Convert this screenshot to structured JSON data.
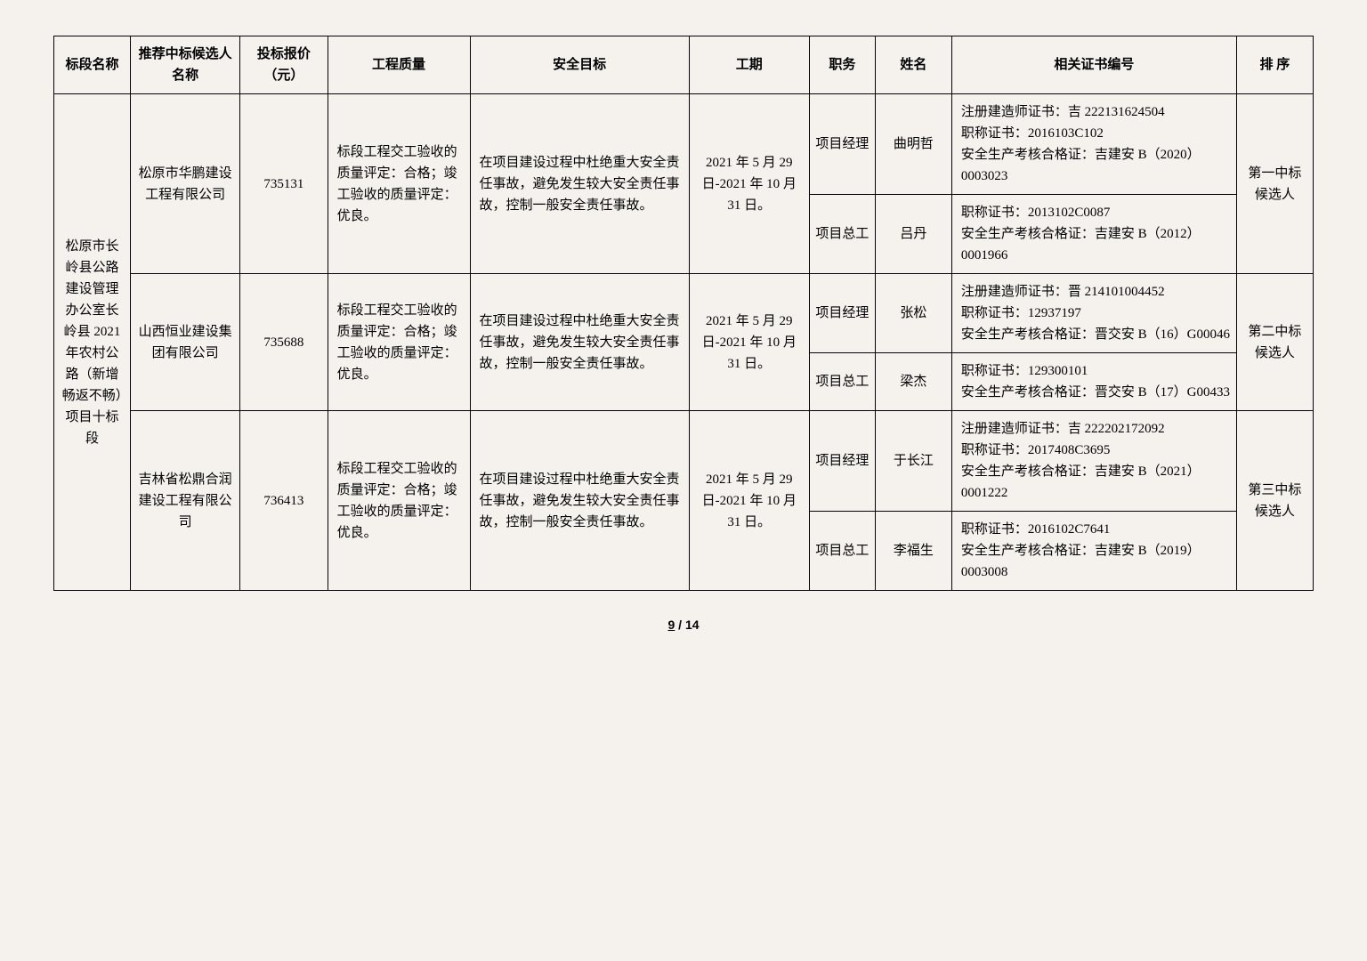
{
  "headers": {
    "section": "标段名称",
    "candidate": "推荐中标候选人名称",
    "price": "投标报价（元）",
    "quality": "工程质量",
    "safety": "安全目标",
    "period": "工期",
    "role": "职务",
    "name": "姓名",
    "cert": "相关证书编号",
    "rank": "排 序"
  },
  "section_name": "松原市长岭县公路建设管理办公室长岭县 2021 年农村公路（新增畅返不畅）项目十标段",
  "quality_text": "标段工程交工验收的质量评定：合格；竣工验收的质量评定：优良。",
  "safety_text": "在项目建设过程中杜绝重大安全责任事故，避免发生较大安全责任事故，控制一般安全责任事故。",
  "period_text": "2021 年 5 月 29 日-2021 年 10 月 31 日。",
  "roles": {
    "pm": "项目经理",
    "eng": "项目总工"
  },
  "cands": [
    {
      "company": "松原市华鹏建设工程有限公司",
      "price": "735131",
      "rank": "第一中标候选人",
      "pm": {
        "name": "曲明哲",
        "cert": "注册建造师证书：吉 222131624504\n职称证书：2016103C102\n安全生产考核合格证：吉建安 B（2020）0003023"
      },
      "eng": {
        "name": "吕丹",
        "cert": "职称证书：2013102C0087\n安全生产考核合格证：吉建安 B（2012）0001966"
      }
    },
    {
      "company": "山西恒业建设集团有限公司",
      "price": "735688",
      "rank": "第二中标候选人",
      "pm": {
        "name": "张松",
        "cert": "注册建造师证书：晋 214101004452\n职称证书：12937197\n安全生产考核合格证：晋交安 B（16）G00046"
      },
      "eng": {
        "name": "梁杰",
        "cert": "职称证书：129300101\n安全生产考核合格证：晋交安 B（17）G00433"
      }
    },
    {
      "company": "吉林省松鼎合润建设工程有限公司",
      "price": "736413",
      "rank": "第三中标候选人",
      "pm": {
        "name": "于长江",
        "cert": "注册建造师证书：吉 222202172092\n职称证书：2017408C3695\n安全生产考核合格证：吉建安 B（2021）0001222"
      },
      "eng": {
        "name": "李福生",
        "cert": "职称证书：2016102C7641\n安全生产考核合格证：吉建安 B（2019）0003008"
      }
    }
  ],
  "page": {
    "current": "9",
    "sep": " / ",
    "total": "14"
  },
  "colwidths": [
    "70",
    "100",
    "80",
    "130",
    "200",
    "110",
    "60",
    "70",
    "260",
    "70"
  ]
}
